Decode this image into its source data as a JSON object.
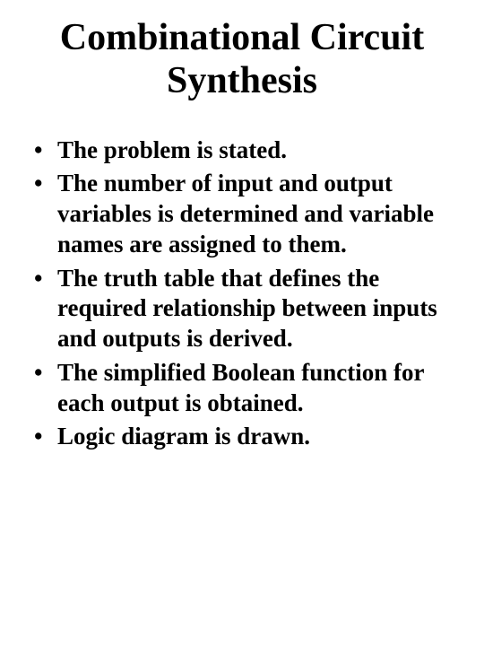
{
  "slide": {
    "title": "Combinational Circuit Synthesis",
    "title_fontsize": 42,
    "title_color": "#000000",
    "bullets": [
      "The problem is stated.",
      "The number of input and output variables is determined and variable names are assigned to them.",
      "The truth table that defines the required relationship between inputs and outputs is derived.",
      "The simplified Boolean function for each output is obtained.",
      "Logic diagram is drawn."
    ],
    "bullet_fontsize": 27,
    "bullet_color": "#000000",
    "background_color": "#ffffff"
  }
}
